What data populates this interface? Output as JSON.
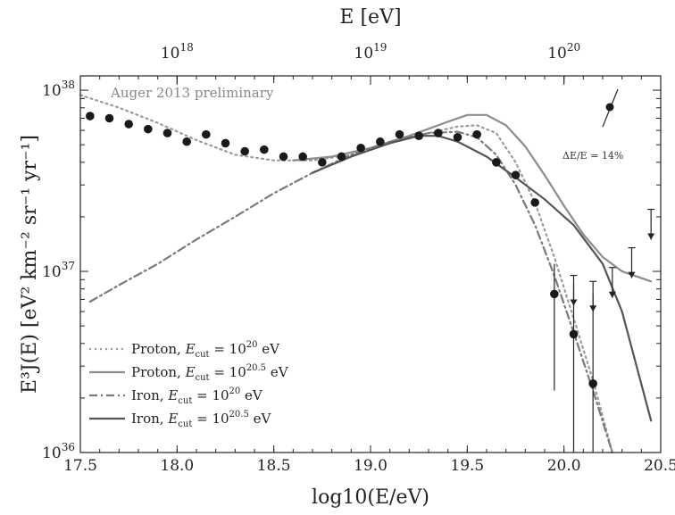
{
  "chart_data": {
    "type": "line",
    "title": "",
    "annotation": "Auger 2013 preliminary",
    "xlabel": "log10(E/eV)",
    "top_xlabel": "E [eV]",
    "ylabel": "E³J(E) [eV² km⁻² sr⁻¹ yr⁻¹]",
    "x_scale": "linear",
    "y_scale": "log",
    "xlim": [
      17.5,
      20.5
    ],
    "ylim": [
      1e+36,
      1.2e+38
    ],
    "x_ticks": [
      "17.5",
      "18.0",
      "18.5",
      "19.0",
      "19.5",
      "20.0",
      "20.5"
    ],
    "y_ticks": [
      "10^36",
      "10^37",
      "10^38"
    ],
    "top_ticks": [
      "10^18",
      "10^19",
      "10^20"
    ],
    "resolution_label": "ΔE/E = 14%",
    "legend_position": "bottom-left",
    "series": [
      {
        "name": "Proton, E_cut = 10^20 eV",
        "legend_label": "Proton, ",
        "legend_sup": "20",
        "color": "#9a9a9a",
        "style": "dotted",
        "points": [
          [
            17.5,
            9.4e+37
          ],
          [
            17.7,
            8e+37
          ],
          [
            17.9,
            6.6e+37
          ],
          [
            18.1,
            5.3e+37
          ],
          [
            18.3,
            4.4e+37
          ],
          [
            18.5,
            4.1e+37
          ],
          [
            18.7,
            4.1e+37
          ],
          [
            18.9,
            4.4e+37
          ],
          [
            19.1,
            5.1e+37
          ],
          [
            19.3,
            5.8e+37
          ],
          [
            19.45,
            6.3e+37
          ],
          [
            19.55,
            6.4e+37
          ],
          [
            19.65,
            5.8e+37
          ],
          [
            19.75,
            4e+37
          ],
          [
            19.85,
            2.4e+37
          ],
          [
            19.95,
            1.2e+37
          ],
          [
            20.05,
            5.5e+36
          ],
          [
            20.15,
            2.5e+36
          ],
          [
            20.25,
            1e+36
          ]
        ]
      },
      {
        "name": "Proton, E_cut = 10^20.5 eV",
        "legend_label": "Proton, ",
        "legend_sup": "20.5",
        "color": "#8c8c8c",
        "style": "solid",
        "points": [
          [
            18.6,
            4.1e+37
          ],
          [
            18.8,
            4.3e+37
          ],
          [
            19.0,
            4.8e+37
          ],
          [
            19.2,
            5.6e+37
          ],
          [
            19.4,
            6.7e+37
          ],
          [
            19.5,
            7.3e+37
          ],
          [
            19.6,
            7.3e+37
          ],
          [
            19.7,
            6.4e+37
          ],
          [
            19.8,
            4.9e+37
          ],
          [
            19.9,
            3.4e+37
          ],
          [
            20.0,
            2.3e+37
          ],
          [
            20.1,
            1.6e+37
          ],
          [
            20.2,
            1.2e+37
          ],
          [
            20.3,
            1e+37
          ],
          [
            20.45,
            8.8e+36
          ]
        ]
      },
      {
        "name": "Iron, E_cut = 10^20 eV",
        "legend_label": "Iron, ",
        "legend_sup": "20",
        "color": "#7a7a7a",
        "style": "dashdot",
        "points": [
          [
            17.55,
            6.8e+36
          ],
          [
            17.7,
            8.4e+36
          ],
          [
            17.9,
            1.1e+37
          ],
          [
            18.1,
            1.5e+37
          ],
          [
            18.3,
            2e+37
          ],
          [
            18.5,
            2.7e+37
          ],
          [
            18.7,
            3.5e+37
          ],
          [
            18.9,
            4.4e+37
          ],
          [
            19.1,
            5.2e+37
          ],
          [
            19.3,
            5.8e+37
          ],
          [
            19.45,
            5.9e+37
          ],
          [
            19.55,
            5.5e+37
          ],
          [
            19.65,
            4.4e+37
          ],
          [
            19.75,
            3e+37
          ],
          [
            19.85,
            1.8e+37
          ],
          [
            19.95,
            9.5e+36
          ],
          [
            20.05,
            4.6e+36
          ],
          [
            20.15,
            2.2e+36
          ],
          [
            20.25,
            1e+36
          ]
        ]
      },
      {
        "name": "Iron, E_cut = 10^20.5 eV",
        "legend_label": "Iron, ",
        "legend_sup": "20.5",
        "color": "#555555",
        "style": "solid",
        "points": [
          [
            18.7,
            3.5e+37
          ],
          [
            18.9,
            4.3e+37
          ],
          [
            19.1,
            5.1e+37
          ],
          [
            19.25,
            5.6e+37
          ],
          [
            19.35,
            5.6e+37
          ],
          [
            19.45,
            5.2e+37
          ],
          [
            19.6,
            4.3e+37
          ],
          [
            19.75,
            3.3e+37
          ],
          [
            19.9,
            2.5e+37
          ],
          [
            20.05,
            1.8e+37
          ],
          [
            20.2,
            1.1e+37
          ],
          [
            20.3,
            6e+36
          ],
          [
            20.45,
            1.5e+36
          ]
        ]
      }
    ],
    "data_points": [
      {
        "x": 17.55,
        "y": 7.2e+37
      },
      {
        "x": 17.65,
        "y": 7e+37
      },
      {
        "x": 17.75,
        "y": 6.5e+37
      },
      {
        "x": 17.85,
        "y": 6.1e+37
      },
      {
        "x": 17.95,
        "y": 5.8e+37
      },
      {
        "x": 18.05,
        "y": 5.2e+37
      },
      {
        "x": 18.15,
        "y": 5.7e+37
      },
      {
        "x": 18.25,
        "y": 5.1e+37
      },
      {
        "x": 18.35,
        "y": 4.6e+37
      },
      {
        "x": 18.45,
        "y": 4.7e+37
      },
      {
        "x": 18.55,
        "y": 4.3e+37
      },
      {
        "x": 18.65,
        "y": 4.3e+37
      },
      {
        "x": 18.75,
        "y": 4e+37
      },
      {
        "x": 18.85,
        "y": 4.3e+37
      },
      {
        "x": 18.95,
        "y": 4.8e+37
      },
      {
        "x": 19.05,
        "y": 5.2e+37
      },
      {
        "x": 19.15,
        "y": 5.7e+37
      },
      {
        "x": 19.25,
        "y": 5.6e+37
      },
      {
        "x": 19.35,
        "y": 5.8e+37
      },
      {
        "x": 19.45,
        "y": 5.5e+37
      },
      {
        "x": 19.55,
        "y": 5.7e+37
      },
      {
        "x": 19.65,
        "y": 4e+37
      },
      {
        "x": 19.75,
        "y": 3.4e+37
      },
      {
        "x": 19.85,
        "y": 2.4e+37
      },
      {
        "x": 19.95,
        "y": 7.5e+36,
        "ylo": 2.2e+36,
        "yhi": 1.1e+37
      },
      {
        "x": 20.05,
        "y": 4.5e+36,
        "ylo": 1e+36,
        "yhi": 8.5e+36
      },
      {
        "x": 20.15,
        "y": 2.4e+36,
        "ylo": 1e+36,
        "yhi": 7.5e+36
      }
    ],
    "upper_limits": [
      {
        "x": 20.05,
        "y": 9.5e+36
      },
      {
        "x": 20.15,
        "y": 8.8e+36
      },
      {
        "x": 20.25,
        "y": 1.05e+37
      },
      {
        "x": 20.35,
        "y": 1.35e+37
      },
      {
        "x": 20.45,
        "y": 2.2e+37
      }
    ]
  }
}
